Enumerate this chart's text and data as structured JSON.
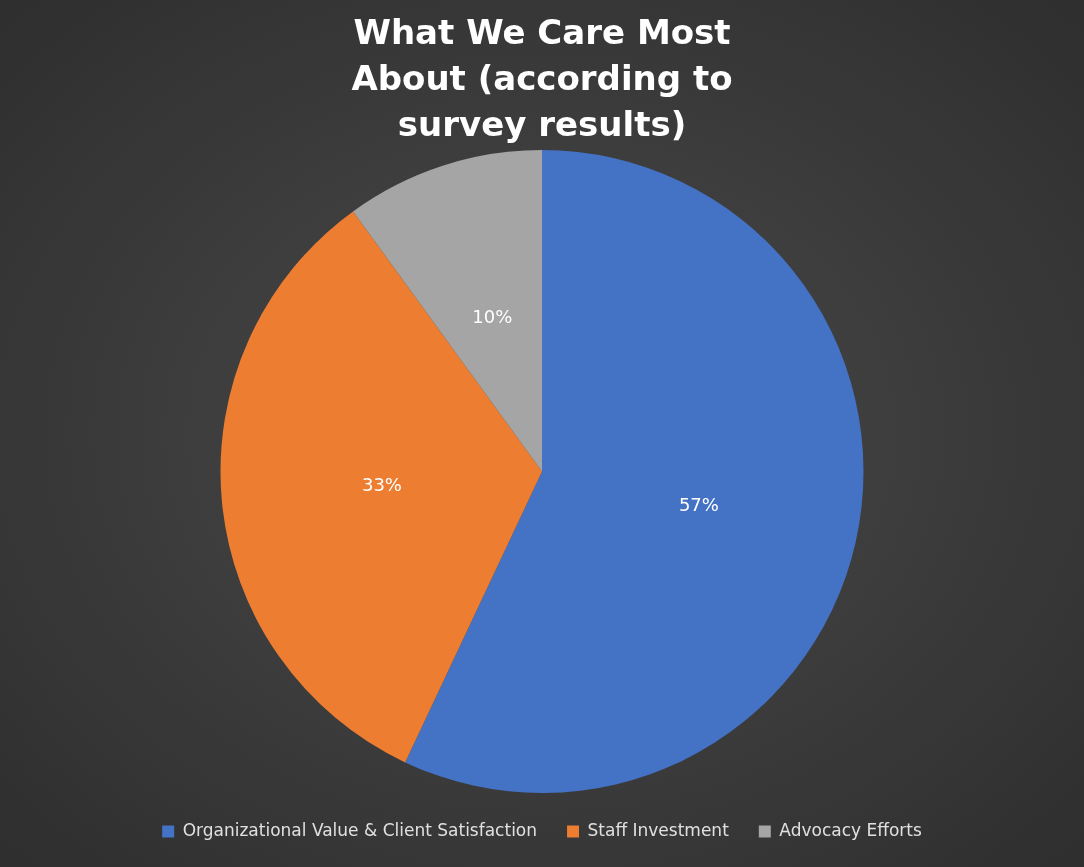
{
  "chart_data": {
    "type": "pie",
    "title": "What We Care Most About (according to survey results)",
    "categories": [
      "Organizational Value & Client Satisfaction",
      "Staff Investment",
      "Advocacy Efforts"
    ],
    "values": [
      57,
      33,
      10
    ],
    "colors": [
      "#4472c4",
      "#ed7d31",
      "#a5a5a5"
    ],
    "value_labels": [
      "57%",
      "33%",
      "10%"
    ],
    "legend": "bottom"
  }
}
